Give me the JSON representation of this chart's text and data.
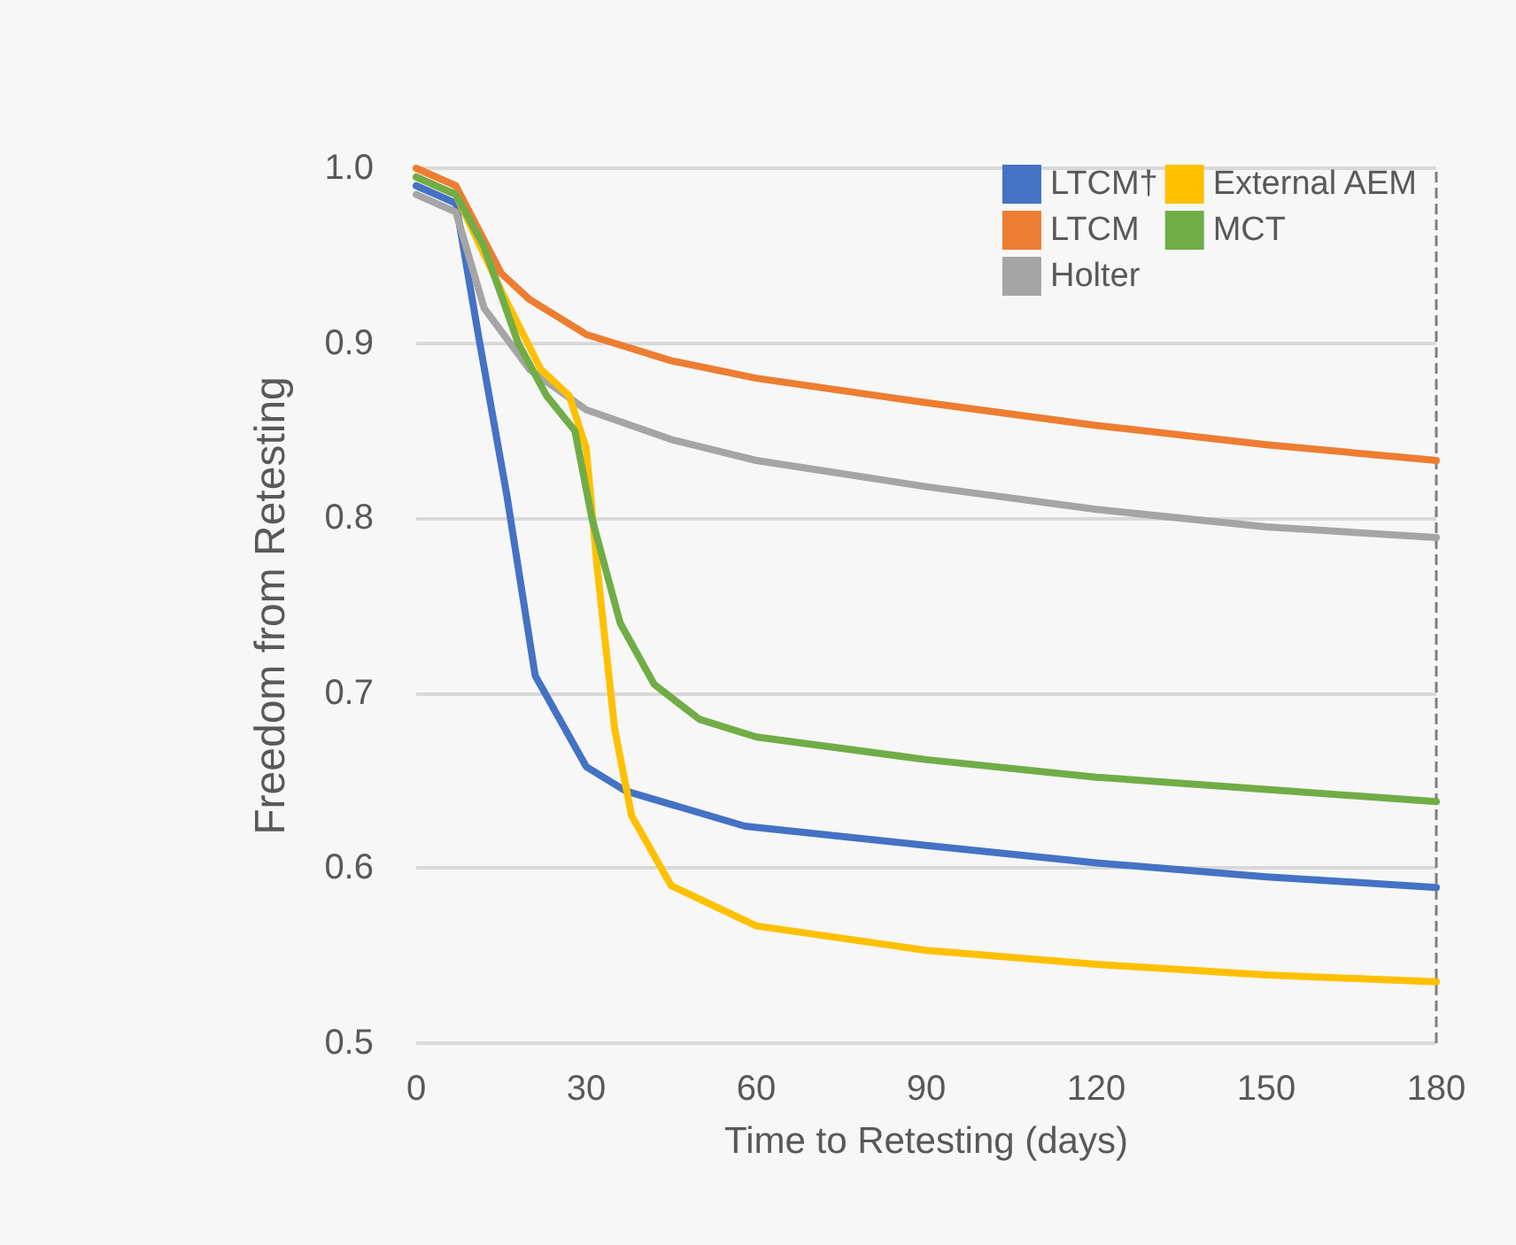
{
  "chart_data": {
    "type": "line",
    "xlabel": "Time to Retesting (days)",
    "ylabel": "Freedom from Retesting",
    "x": [
      0,
      7,
      11,
      16,
      21,
      30,
      37,
      58,
      90,
      120,
      150,
      180
    ],
    "series": [
      {
        "name": "LTCM†",
        "color": "#4472c4",
        "values": [
          0.99,
          0.98,
          0.904,
          0.813,
          0.71,
          0.658,
          0.644,
          0.624,
          0.613,
          0.603,
          0.595,
          0.589
        ]
      },
      {
        "name": "LTCM",
        "color": "#ed7d31",
        "x": [
          0,
          7,
          15,
          20,
          30,
          45,
          60,
          90,
          120,
          150,
          180
        ],
        "values": [
          1.0,
          0.99,
          0.94,
          0.925,
          0.905,
          0.89,
          0.88,
          0.866,
          0.853,
          0.842,
          0.833
        ]
      },
      {
        "name": "Holter",
        "color": "#a5a5a5",
        "x": [
          0,
          7,
          12,
          20,
          30,
          45,
          60,
          90,
          120,
          150,
          180
        ],
        "values": [
          0.985,
          0.975,
          0.92,
          0.885,
          0.862,
          0.845,
          0.833,
          0.818,
          0.805,
          0.795,
          0.789
        ]
      },
      {
        "name": "External AEM",
        "color": "#ffc000",
        "x": [
          0,
          7,
          15,
          22,
          27,
          30,
          32,
          35,
          38,
          45,
          60,
          90,
          120,
          150,
          180
        ],
        "values": [
          0.995,
          0.985,
          0.93,
          0.885,
          0.87,
          0.84,
          0.77,
          0.68,
          0.63,
          0.59,
          0.567,
          0.553,
          0.545,
          0.539,
          0.535
        ]
      },
      {
        "name": "MCT",
        "color": "#70ad47",
        "x": [
          0,
          7,
          12,
          18,
          23,
          28,
          31,
          36,
          42,
          50,
          60,
          90,
          120,
          150,
          180
        ],
        "values": [
          0.995,
          0.985,
          0.955,
          0.9,
          0.87,
          0.85,
          0.8,
          0.74,
          0.705,
          0.685,
          0.675,
          0.662,
          0.652,
          0.645,
          0.638
        ]
      }
    ],
    "xlim": [
      0,
      180
    ],
    "xticks": [
      0,
      30,
      60,
      90,
      120,
      150,
      180
    ],
    "ylim": [
      0.5,
      1.0
    ],
    "yticks": [
      0.5,
      0.6,
      0.7,
      0.8,
      0.9,
      {
        "value": 1.0,
        "label": "1.0"
      }
    ],
    "ref_lines": [
      {
        "axis": "x",
        "value": 180,
        "color": "#7f7f7f",
        "line_style": "dashed"
      }
    ],
    "grid": "y",
    "legend": "top right",
    "marker": "none",
    "line_style": "solid"
  }
}
